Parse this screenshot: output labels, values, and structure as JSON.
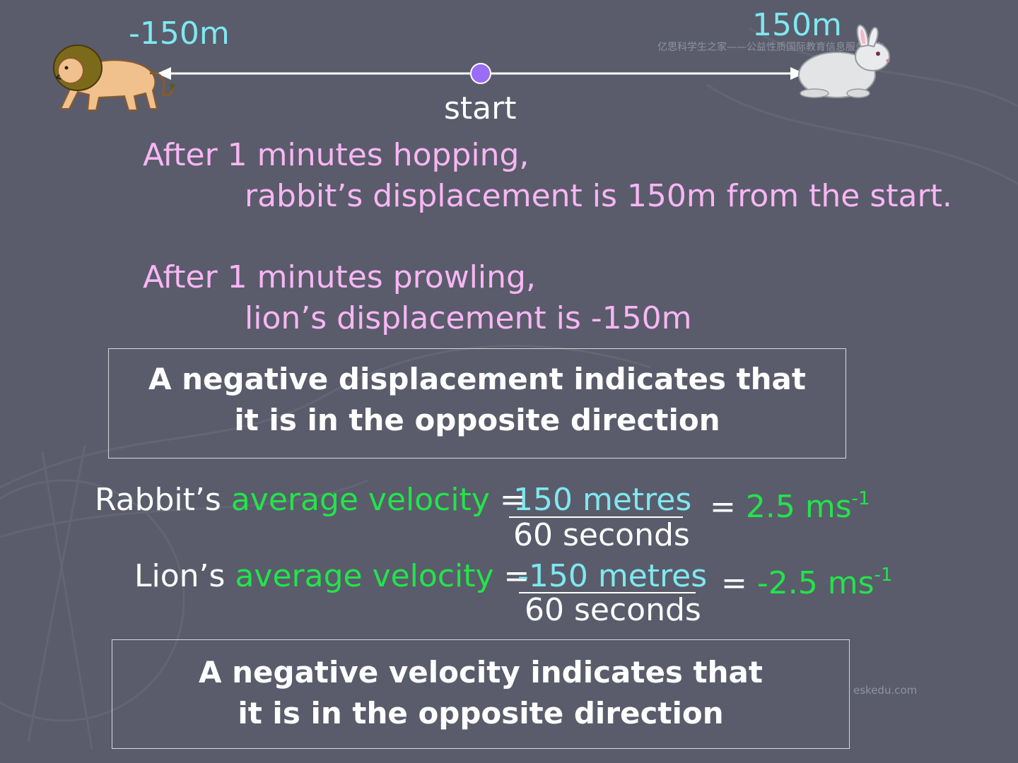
{
  "number_line": {
    "left_label": "-150m",
    "right_label": "150m",
    "start_label": "start"
  },
  "watermarks": {
    "top": "亿思科学生之家——公益性质国际教育信息服务平台",
    "bottom": "eskedu.com"
  },
  "rabbit_text": {
    "line1": "After 1 minutes hopping,",
    "line2": "rabbit’s displacement is 150m from the start."
  },
  "lion_text": {
    "line1": "After 1 minutes prowling,",
    "line2": "lion’s displacement is -150m"
  },
  "box1": {
    "line1": "A negative displacement indicates that",
    "line2": "it is in the opposite direction"
  },
  "rabbit_velocity": {
    "subject": "Rabbit’s ",
    "term": "average velocity",
    "equals": " =",
    "numerator": "150 metres",
    "denominator": "60 seconds",
    "result_eq": "=",
    "result_value": "2.5 ms",
    "result_exp": "-1"
  },
  "lion_velocity": {
    "subject": "Lion’s ",
    "term": "average velocity",
    "equals": " =",
    "numerator": "-150 metres",
    "denominator": "60 seconds",
    "result_eq": "=",
    "result_value": "-2.5 ms",
    "result_exp": "-1"
  },
  "box2": {
    "line1": "A negative velocity indicates that",
    "line2": "it is in the opposite direction"
  },
  "colors": {
    "background": "#5a5c6b",
    "cyan": "#7fe8f0",
    "pink": "#f8b6f4",
    "green": "#22e44a",
    "start_dot": "#9b6cf6"
  },
  "icons": [
    "lion-image",
    "rabbit-image",
    "start-point-icon",
    "arrow-left-icon",
    "arrow-right-icon"
  ]
}
